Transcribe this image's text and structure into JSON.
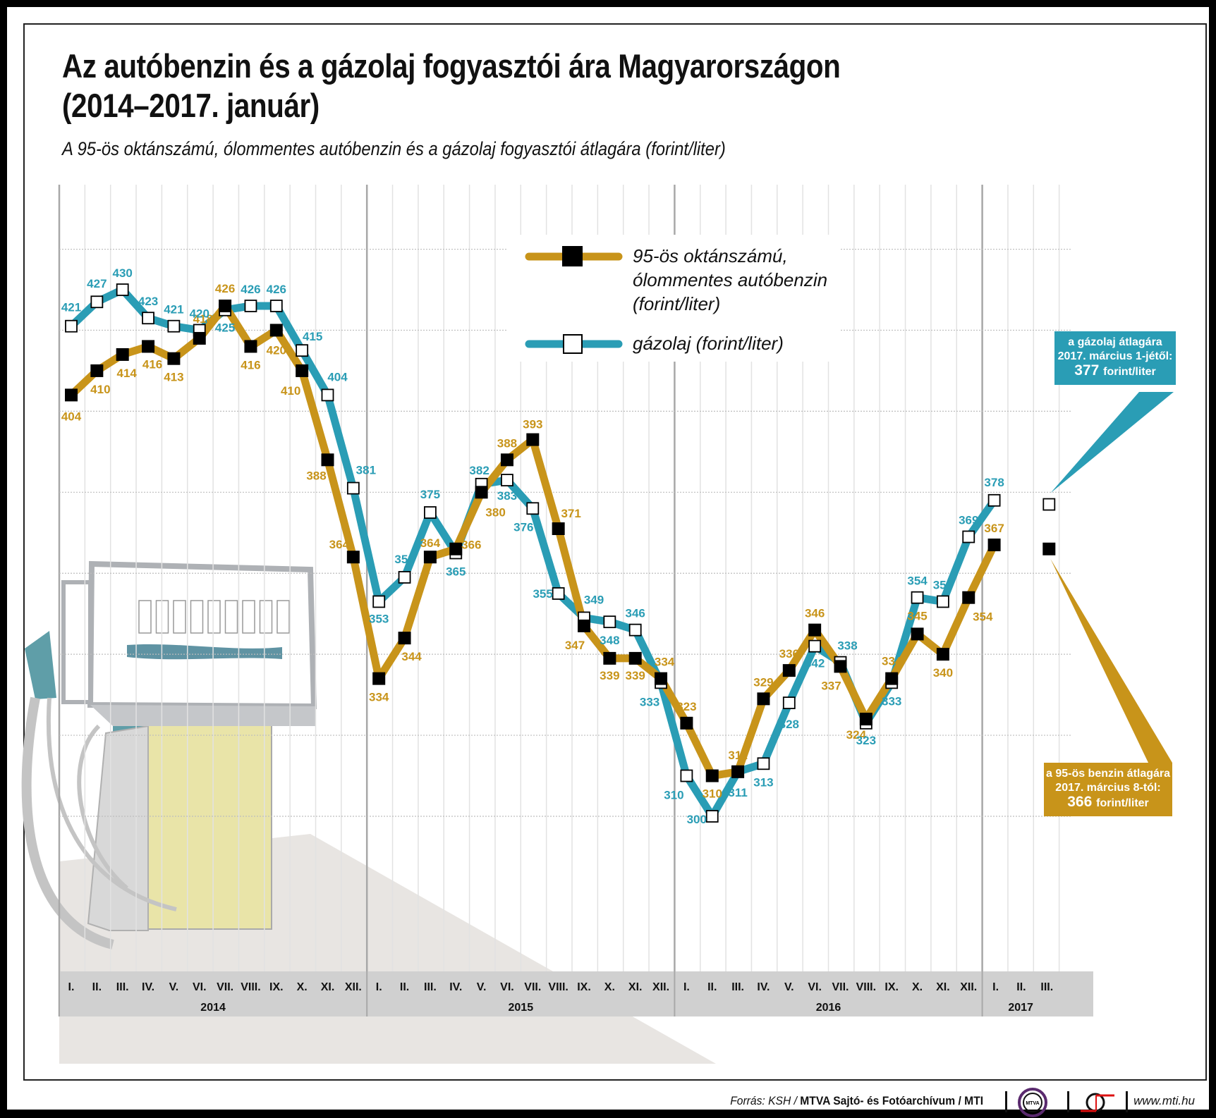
{
  "header": {
    "title_line1": "Az autóbenzin és a gázolaj fogyasztói ára Magyarországon",
    "title_line2": "(2014–2017. január)",
    "subtitle": "A 95-ös oktánszámú, ólommentes autóbenzin és a gázolaj fogyasztói átlagára (forint/liter)"
  },
  "legend": {
    "petrol_line1": "95-ös oktánszámú,",
    "petrol_line2": "ólommentes autóbenzin",
    "petrol_line3": "(forint/liter)",
    "diesel": "gázolaj (forint/liter)"
  },
  "callouts": {
    "diesel": {
      "line1": "a gázolaj átlagára",
      "line2": "2017. március 1-jétől:",
      "value": "377",
      "unit": "forint/liter",
      "color": "#2a9db5"
    },
    "petrol": {
      "line1": "a 95-ös benzin átlagára",
      "line2": "2017. március 8-tól:",
      "value": "366",
      "unit": "forint/liter",
      "color": "#c8941a"
    }
  },
  "axis": {
    "months": [
      "I.",
      "II.",
      "III.",
      "IV.",
      "V.",
      "VI.",
      "VII.",
      "VIII.",
      "IX.",
      "X.",
      "XI.",
      "XII.",
      "I.",
      "II.",
      "III.",
      "IV.",
      "V.",
      "VI.",
      "VII.",
      "VIII.",
      "IX.",
      "X.",
      "XI.",
      "XII.",
      "I.",
      "II.",
      "III.",
      "IV.",
      "V.",
      "VI.",
      "VII.",
      "VIII.",
      "IX.",
      "X.",
      "XI.",
      "XII.",
      "I.",
      "II.",
      "III."
    ],
    "years": [
      "2014",
      "2015",
      "2016",
      "2017"
    ]
  },
  "footer": {
    "source_prefix": "Forrás: KSH / ",
    "source_bold": "MTVA Sajtó- és Fotóarchívum / MTI",
    "logo_text": "MTVA",
    "url": "www.mti.hu"
  },
  "colors": {
    "petrol": "#c8941a",
    "diesel": "#2a9db5",
    "axis_band": "#d0d0d0"
  },
  "chart_data": {
    "type": "line",
    "title": "Az autóbenzin és a gázolaj fogyasztói ára Magyarországon (2014–2017. január)",
    "subtitle": "A 95-ös oktánszámú, ólommentes autóbenzin és a gázolaj fogyasztói átlagára (forint/liter)",
    "xlabel": "",
    "ylabel": "forint/liter",
    "x": [
      "2014-I",
      "2014-II",
      "2014-III",
      "2014-IV",
      "2014-V",
      "2014-VI",
      "2014-VII",
      "2014-VIII",
      "2014-IX",
      "2014-X",
      "2014-XI",
      "2014-XII",
      "2015-I",
      "2015-II",
      "2015-III",
      "2015-IV",
      "2015-V",
      "2015-VI",
      "2015-VII",
      "2015-VIII",
      "2015-IX",
      "2015-X",
      "2015-XI",
      "2015-XII",
      "2016-I",
      "2016-II",
      "2016-III",
      "2016-IV",
      "2016-V",
      "2016-VI",
      "2016-VII",
      "2016-VIII",
      "2016-IX",
      "2016-X",
      "2016-XI",
      "2016-XII",
      "2017-I"
    ],
    "series": [
      {
        "name": "95-ös oktánszámú, ólommentes autóbenzin (forint/liter)",
        "color": "#c8941a",
        "marker": "filled-square",
        "values": [
          404,
          410,
          414,
          416,
          413,
          418,
          426,
          416,
          420,
          410,
          388,
          364,
          334,
          344,
          364,
          366,
          380,
          388,
          393,
          371,
          347,
          339,
          339,
          334,
          323,
          310,
          311,
          329,
          336,
          346,
          337,
          324,
          334,
          345,
          340,
          354,
          367
        ]
      },
      {
        "name": "gázolaj (forint/liter)",
        "color": "#2a9db5",
        "marker": "hollow-square",
        "values": [
          421,
          427,
          430,
          423,
          421,
          420,
          425,
          426,
          426,
          415,
          404,
          381,
          353,
          359,
          375,
          365,
          382,
          383,
          376,
          355,
          349,
          348,
          346,
          333,
          310,
          300,
          311,
          313,
          328,
          342,
          338,
          323,
          333,
          354,
          353,
          369,
          378
        ]
      }
    ],
    "annotations": [
      {
        "text": "a gázolaj átlagára 2017. március 1-jétől: 377 forint/liter",
        "x": "2017-III",
        "value": 377
      },
      {
        "text": "a 95-ös benzin átlagára 2017. március 8-tól: 366 forint/liter",
        "x": "2017-III",
        "value": 366
      }
    ],
    "ylim": [
      290,
      440
    ],
    "grid": true,
    "legend_position": "top-center"
  }
}
